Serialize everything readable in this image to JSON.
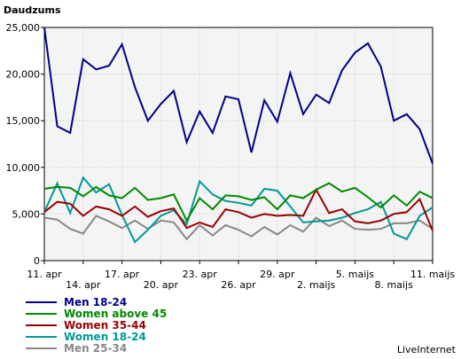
{
  "chart_data": {
    "type": "line",
    "ylabel": "Daudzums",
    "ylim": [
      0,
      25000
    ],
    "yticks": [
      "0",
      "5,000",
      "10,000",
      "15,000",
      "20,000",
      "25,000"
    ],
    "ytick_values": [
      0,
      5000,
      10000,
      15000,
      20000,
      25000
    ],
    "x_tick_labels": [
      "11. apr",
      "14. apr",
      "17. apr",
      "20. apr",
      "23. apr",
      "26. apr",
      "29. apr",
      "2. maijs",
      "5. maijs",
      "8. maijs",
      "11. maijs"
    ],
    "x_tick_indices": [
      0,
      3,
      6,
      9,
      12,
      15,
      18,
      21,
      24,
      27,
      30
    ],
    "grid": true,
    "legend_position": "bottom-left",
    "series": [
      {
        "name": "Men 18-24",
        "color": "#00008B",
        "values": [
          25000,
          14400,
          13700,
          21600,
          20500,
          20900,
          23200,
          18600,
          15000,
          16800,
          18200,
          12700,
          16000,
          13700,
          17600,
          17300,
          11600,
          17200,
          14900,
          20100,
          15700,
          17800,
          16900,
          20400,
          22300,
          23300,
          20800,
          15000,
          15700,
          14100,
          10400
        ]
      },
      {
        "name": "Women above 45",
        "color": "#008800",
        "values": [
          7700,
          7900,
          7800,
          6900,
          7900,
          7000,
          6700,
          7800,
          6500,
          6700,
          7100,
          4300,
          6700,
          5500,
          7000,
          6900,
          6500,
          6800,
          5500,
          7000,
          6700,
          7600,
          8300,
          7400,
          7800,
          6800,
          5700,
          7000,
          5900,
          7400,
          6700
        ]
      },
      {
        "name": "Women 35-44",
        "color": "#990000",
        "values": [
          5200,
          6300,
          6100,
          4800,
          5800,
          5500,
          4800,
          5800,
          4700,
          5300,
          5600,
          3500,
          4100,
          3600,
          5500,
          5200,
          4600,
          5000,
          4800,
          4900,
          4800,
          7600,
          5100,
          5500,
          4200,
          4000,
          4300,
          5000,
          5200,
          6600,
          3200
        ]
      },
      {
        "name": "Women 18-24",
        "color": "#009999",
        "values": [
          5200,
          8300,
          5100,
          8900,
          7300,
          8200,
          4900,
          2000,
          3300,
          4800,
          5400,
          3900,
          8500,
          7100,
          6400,
          6200,
          5900,
          7700,
          7500,
          5800,
          4100,
          4200,
          4300,
          4600,
          5100,
          5500,
          6300,
          2900,
          2300,
          4800,
          5700
        ]
      },
      {
        "name": "Men 25-34",
        "color": "#888888",
        "values": [
          4600,
          4400,
          3400,
          2900,
          4800,
          4200,
          3500,
          4300,
          3400,
          4300,
          4100,
          2300,
          3800,
          2700,
          3800,
          3300,
          2600,
          3600,
          2800,
          3800,
          3100,
          4600,
          3700,
          4300,
          3400,
          3300,
          3400,
          4000,
          4000,
          4300,
          3400
        ]
      }
    ]
  },
  "credit": "LiveInternet"
}
